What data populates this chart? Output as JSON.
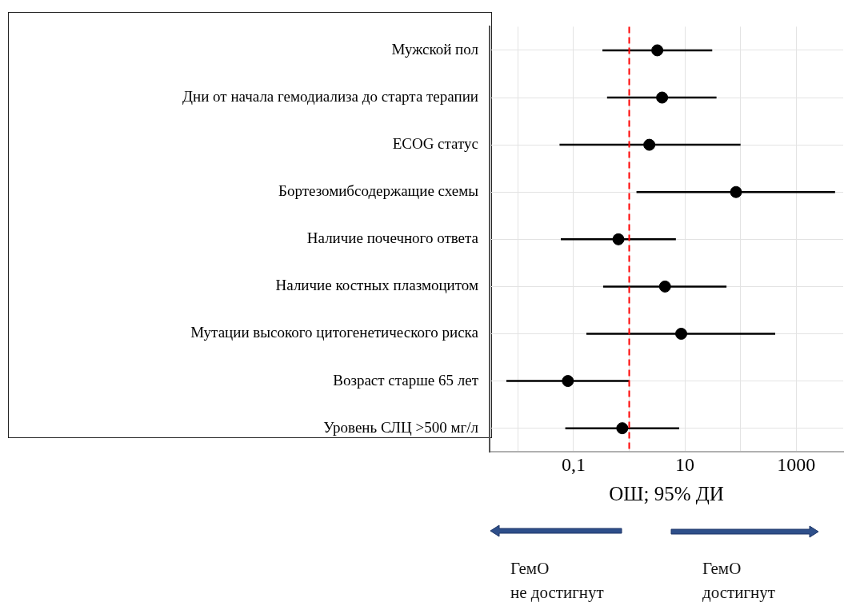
{
  "chart_data": {
    "type": "scatter",
    "orientation": "horizontal",
    "xlabel": "ОШ; 95% ДИ",
    "categories": [
      "Мужской пол",
      "Дни от начала гемодиализа до старта терапии",
      "ECOG статус",
      "Бортезомибсодержащие схемы",
      "Наличие почечного ответа",
      "Наличие костных плазмоцитом",
      "Мутации высокого цитогенетического риска",
      "Возраст старше 65 лет",
      "Уровень СЛЦ >500 мг/л"
    ],
    "values": [
      3.2,
      3.9,
      2.3,
      83,
      0.64,
      4.4,
      8.6,
      0.079,
      0.75
    ],
    "errors": [
      [
        0.33,
        31
      ],
      [
        0.4,
        37
      ],
      [
        0.056,
        100
      ],
      [
        1.35,
        5000
      ],
      [
        0.059,
        6.9
      ],
      [
        0.34,
        56
      ],
      [
        0.17,
        420
      ],
      [
        0.0062,
        1
      ],
      [
        0.071,
        7.9
      ]
    ],
    "color": "#000000",
    "marker": "circle",
    "log": "x",
    "grid": true,
    "xlim": [
      0.0031,
      7000
    ],
    "xticks": [
      {
        "value": 0.01,
        "label": null
      },
      {
        "value": 0.1,
        "label": "0,1"
      },
      {
        "value": 1,
        "label": null
      },
      10,
      {
        "value": 100,
        "label": null
      },
      1000
    ],
    "ref_lines": [
      {
        "axis": "x",
        "value": 1,
        "color": "#ff0000",
        "line_style": "dashed"
      }
    ],
    "annotations": [
      "ГемО\nне достигнут",
      "ГемО\nдостигнут"
    ]
  }
}
